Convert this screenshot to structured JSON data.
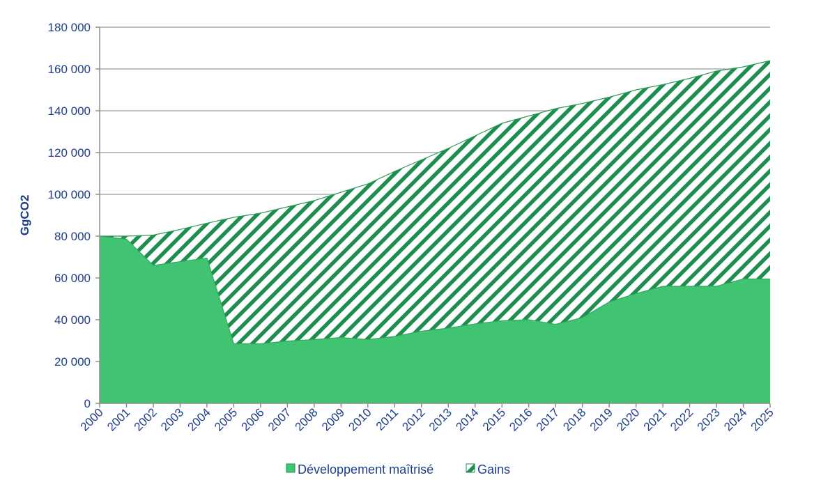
{
  "chart_data": {
    "type": "area",
    "x": [
      2000,
      2001,
      2002,
      2003,
      2004,
      2005,
      2006,
      2007,
      2008,
      2009,
      2010,
      2011,
      2012,
      2013,
      2014,
      2015,
      2016,
      2017,
      2018,
      2019,
      2020,
      2021,
      2022,
      2023,
      2024,
      2025
    ],
    "x_tick_labels": [
      "2000",
      "2001",
      "2002",
      "2003",
      "2004",
      "2005",
      "2006",
      "2007",
      "2008",
      "2009",
      "2010",
      "2011",
      "2012",
      "2013",
      "2014",
      "2015",
      "2016",
      "2017",
      "2018",
      "2019",
      "2020",
      "2021",
      "2022",
      "2023",
      "2024",
      "2025"
    ],
    "series": [
      {
        "name": "Développement maîtrisé",
        "color": "#41c472",
        "values": [
          80000,
          78500,
          66000,
          67800,
          69500,
          28500,
          28500,
          29800,
          30500,
          31500,
          30500,
          32000,
          34500,
          36000,
          38000,
          39500,
          40000,
          37800,
          41000,
          48500,
          52500,
          56000,
          56000,
          56000,
          59500,
          59500
        ]
      },
      {
        "name": "Gains",
        "color": "#1e8e4e",
        "pattern": "diagonal-hatch",
        "values": [
          0,
          1500,
          14500,
          15400,
          16700,
          60500,
          62500,
          64200,
          66500,
          69500,
          74500,
          79000,
          82000,
          86000,
          90000,
          94500,
          97500,
          103200,
          102500,
          98000,
          97500,
          96500,
          99500,
          103000,
          101500,
          104500
        ]
      }
    ],
    "upper_total": [
      80000,
      80000,
      80500,
      83200,
      86200,
      89000,
      91000,
      94000,
      97000,
      101000,
      105000,
      111000,
      116500,
      122000,
      128000,
      134000,
      137500,
      141000,
      143500,
      146500,
      150000,
      152500,
      155500,
      159000,
      161000,
      164000
    ],
    "ylabel": "GgCO2",
    "ylim": [
      0,
      180000
    ],
    "y_ticks": [
      0,
      20000,
      40000,
      60000,
      80000,
      100000,
      120000,
      140000,
      160000,
      180000
    ],
    "y_tick_labels": [
      "0",
      "20 000",
      "40 000",
      "60 000",
      "80 000",
      "100 000",
      "120 000",
      "140 000",
      "160 000",
      "180 000"
    ],
    "grid": true,
    "legend_position": "bottom",
    "colors": {
      "axis": "#8e8e8e",
      "grid": "#9a9aa6",
      "text": "#1f3e8a"
    }
  }
}
